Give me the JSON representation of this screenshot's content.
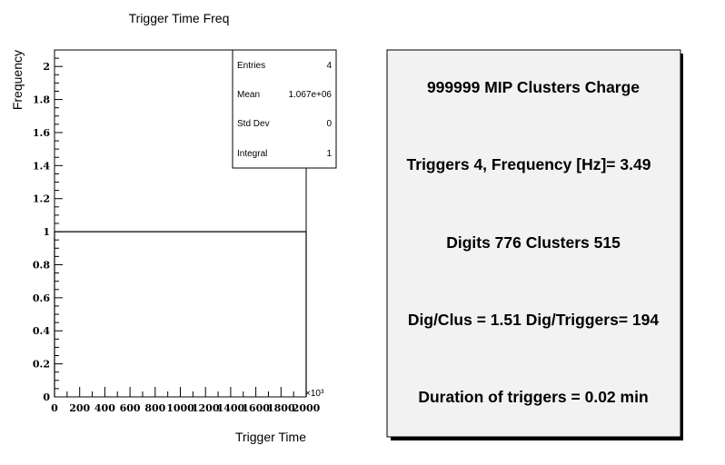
{
  "chart_data": {
    "type": "histogram",
    "title": "Trigger Time Freq",
    "xlabel": "Trigger Time",
    "ylabel": "Frequency",
    "x_exponent_label": "×10³",
    "xlim": [
      0,
      2000
    ],
    "ylim": [
      0,
      2.1
    ],
    "x_ticks": [
      "0",
      "200",
      "400",
      "600",
      "800",
      "1000",
      "1200",
      "1400",
      "1600",
      "1800",
      "2000"
    ],
    "y_ticks": [
      "0",
      "0.2",
      "0.4",
      "0.6",
      "0.8",
      "1",
      "1.2",
      "1.4",
      "1.6",
      "1.8",
      "2"
    ],
    "x_tick_values": [
      0,
      200,
      400,
      600,
      800,
      1000,
      1200,
      1400,
      1600,
      1800,
      2000
    ],
    "y_tick_values": [
      0,
      0.2,
      0.4,
      0.6,
      0.8,
      1,
      1.2,
      1.4,
      1.6,
      1.8,
      2
    ],
    "bins": [
      {
        "x_start": 0,
        "x_end": 2000,
        "value": 1
      }
    ]
  },
  "stats_box": {
    "entries_label": "Entries",
    "entries_value": "4",
    "mean_label": "Mean",
    "mean_value": "1.067e+06",
    "stddev_label": "Std Dev",
    "stddev_value": "0",
    "integral_label": "Integral",
    "integral_value": "1"
  },
  "info_panel": {
    "line1": "999999 MIP Clusters Charge",
    "line2": "Triggers 4, Frequency [Hz]= 3.49",
    "line3": "Digits 776 Clusters 515",
    "line4": "Dig/Clus = 1.51 Dig/Triggers= 194",
    "line5": "Duration of triggers = 0.02 min"
  },
  "colors": {
    "frame": "#000000",
    "panel_fill": "#f2f2f2",
    "background": "#ffffff"
  }
}
